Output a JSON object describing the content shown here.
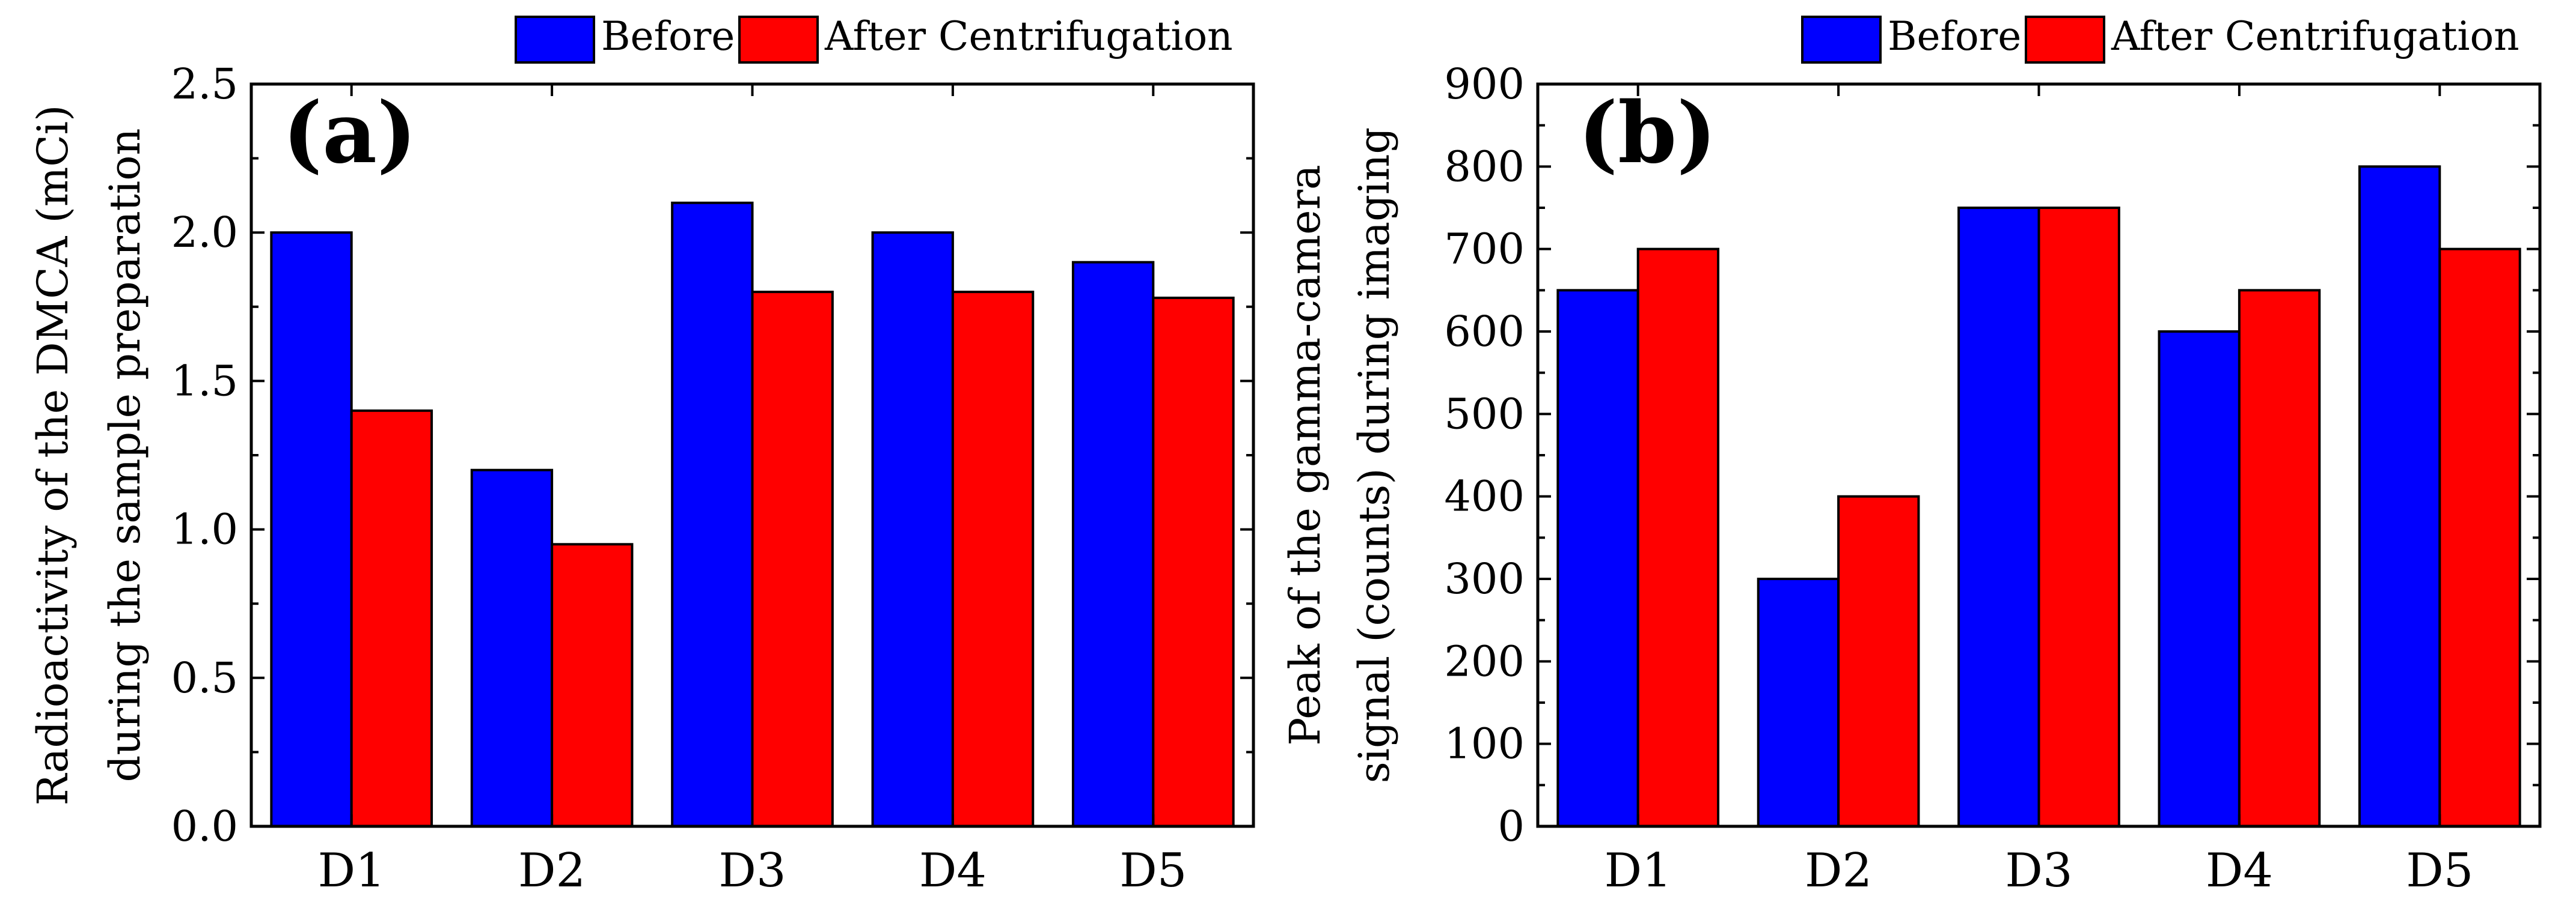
{
  "figure": {
    "panels": [
      "(a)",
      "(b)"
    ]
  },
  "colors": {
    "before": "#0000ff",
    "after": "#ff0000",
    "axis": "#000000"
  },
  "chart_data": [
    {
      "type": "bar",
      "panel_label": "(a)",
      "categories": [
        "D1",
        "D2",
        "D3",
        "D4",
        "D5"
      ],
      "series": [
        {
          "name": "Before",
          "values": [
            2.0,
            1.2,
            2.1,
            2.0,
            1.9
          ]
        },
        {
          "name": "After Centrifugation",
          "values": [
            1.4,
            0.95,
            1.8,
            1.8,
            1.78
          ]
        }
      ],
      "ylabel_lines": [
        "Radioactivity of the DMCA (mCi)",
        "during the sample preparation"
      ],
      "xlabel": "",
      "ylim": [
        0,
        2.5
      ],
      "yticks": [
        0.0,
        0.5,
        1.0,
        1.5,
        2.0,
        2.5
      ],
      "ytick_labels": [
        "0.0",
        "0.5",
        "1.0",
        "1.5",
        "2.0",
        "2.5"
      ],
      "legend_position": "top-right",
      "grid": false
    },
    {
      "type": "bar",
      "panel_label": "(b)",
      "categories": [
        "D1",
        "D2",
        "D3",
        "D4",
        "D5"
      ],
      "series": [
        {
          "name": "Before",
          "values": [
            650,
            300,
            750,
            600,
            800
          ]
        },
        {
          "name": "After Centrifugation",
          "values": [
            700,
            400,
            750,
            650,
            700
          ]
        }
      ],
      "ylabel_lines": [
        "Peak of the gamma-camera",
        "signal (counts) during imaging"
      ],
      "xlabel": "",
      "ylim": [
        0,
        900
      ],
      "yticks": [
        0,
        100,
        200,
        300,
        400,
        500,
        600,
        700,
        800,
        900
      ],
      "ytick_labels": [
        "0",
        "100",
        "200",
        "300",
        "400",
        "500",
        "600",
        "700",
        "800",
        "900"
      ],
      "legend_position": "top-right",
      "grid": false
    }
  ]
}
